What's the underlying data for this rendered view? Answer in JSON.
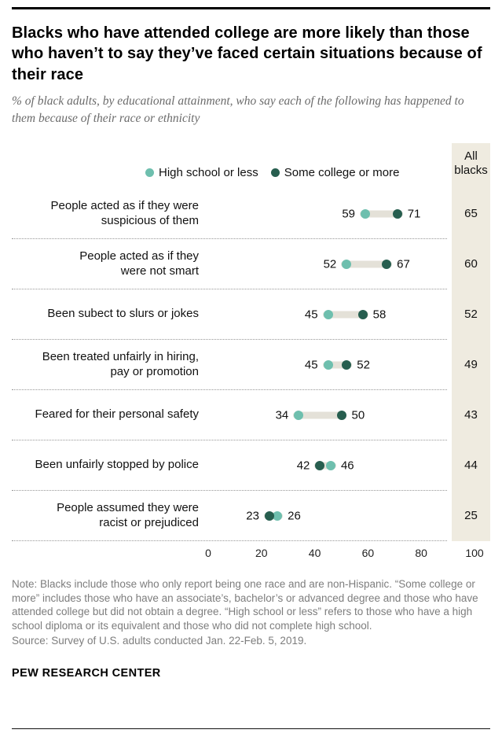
{
  "header": {
    "title": "Blacks who have attended college are more likely than those who haven’t to say they’ve faced certain situations because of their race",
    "subtitle": "% of black adults, by educational attainment, who say each of the following has happened to them because of their race or ethnicity"
  },
  "all_column": {
    "line1": "All",
    "line2": "blacks",
    "background_color": "#efebe0"
  },
  "chart_data": {
    "type": "scatter",
    "subtype": "dumbbell-dot-plot",
    "categories": [
      [
        "People acted as if they were",
        "suspicious of them"
      ],
      [
        "People acted as if they",
        "were not smart"
      ],
      [
        "Been subect to slurs or jokes"
      ],
      [
        "Been treated unfairly in hiring,",
        "pay or promotion"
      ],
      [
        "Feared for their personal safety"
      ],
      [
        "Been unfairly stopped by police"
      ],
      [
        "People assumed they were",
        "racist or prejudiced"
      ]
    ],
    "series": [
      {
        "name": "High school or less",
        "color": "#6ebfae",
        "values": [
          59,
          52,
          45,
          45,
          34,
          46,
          26
        ]
      },
      {
        "name": "Some college or more",
        "color": "#275e4f",
        "values": [
          71,
          67,
          58,
          52,
          50,
          42,
          23
        ]
      }
    ],
    "all_blacks": [
      65,
      60,
      52,
      49,
      43,
      44,
      25
    ],
    "xlim": [
      0,
      100
    ],
    "ticks": [
      0,
      20,
      40,
      60,
      80,
      100
    ],
    "connector_color": "#e4e1d8",
    "grid": "dotted-row-separators",
    "legend_position": "top"
  },
  "notes": {
    "note": "Note: Blacks include those who only report being one race and are non-Hispanic. “Some college or more” includes those who have an associate’s, bachelor’s or advanced degree and those who have attended college but did not obtain a degree. “High school or less” refers to those who have a high school diploma or its equivalent and those who did not complete high school.",
    "source": "Source: Survey of U.S. adults conducted Jan. 22-Feb. 5, 2019."
  },
  "footer": {
    "wordmark": "PEW RESEARCH CENTER"
  }
}
